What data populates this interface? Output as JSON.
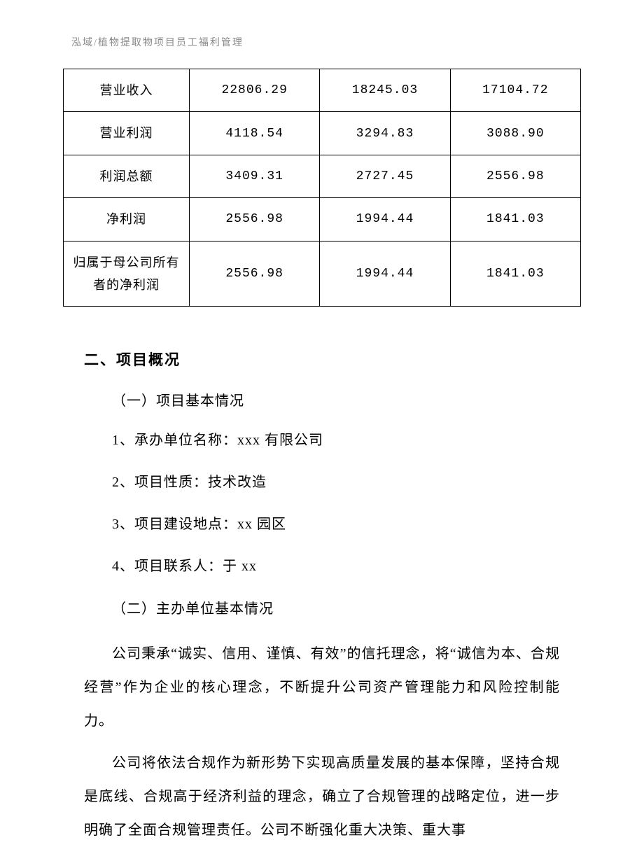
{
  "header": "泓域/植物提取物项目员工福利管理",
  "table": {
    "border_color": "#000000",
    "background_color": "#ffffff",
    "text_color": "#000000",
    "font_size": 18,
    "columns_width": [
      180,
      "auto",
      "auto",
      "auto"
    ],
    "rows": [
      {
        "label": "营业收入",
        "values": [
          "22806.29",
          "18245.03",
          "17104.72"
        ]
      },
      {
        "label": "营业利润",
        "values": [
          "4118.54",
          "3294.83",
          "3088.90"
        ]
      },
      {
        "label": "利润总额",
        "values": [
          "3409.31",
          "2727.45",
          "2556.98"
        ]
      },
      {
        "label": "净利润",
        "values": [
          "2556.98",
          "1994.44",
          "1841.03"
        ]
      },
      {
        "label": "归属于母公司所有者的净利润",
        "values": [
          "2556.98",
          "1994.44",
          "1841.03"
        ]
      }
    ]
  },
  "section": {
    "heading": "二、项目概况",
    "sub1": "（一）项目基本情况",
    "items": [
      "1、承办单位名称：xxx 有限公司",
      "2、项目性质：技术改造",
      "3、项目建设地点：xx 园区",
      "4、项目联系人：于 xx"
    ],
    "sub2": "（二）主办单位基本情况",
    "para1": "公司秉承“诚实、信用、谨慎、有效”的信托理念，将“诚信为本、合规经营”作为企业的核心理念，不断提升公司资产管理能力和风险控制能力。",
    "para2": "公司将依法合规作为新形势下实现高质量发展的基本保障，坚持合规是底线、合规高于经济利益的理念，确立了合规管理的战略定位，进一步明确了全面合规管理责任。公司不断强化重大决策、重大事"
  },
  "styles": {
    "body_bg": "#ffffff",
    "header_color": "#888888",
    "text_color": "#000000",
    "heading_font_size": 21,
    "body_font_size": 20,
    "header_font_size": 14
  }
}
